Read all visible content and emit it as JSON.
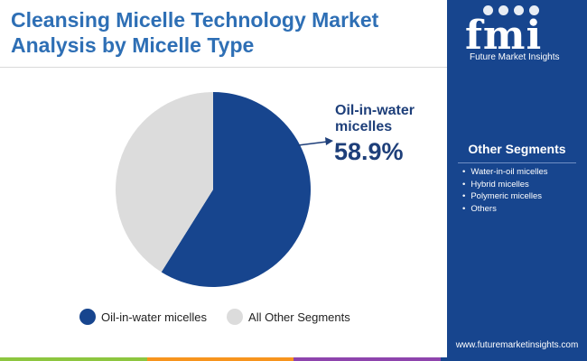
{
  "title": {
    "line1": "Cleansing Micelle Technology Market",
    "line2": "Analysis by Micelle Type"
  },
  "chart_data": {
    "type": "pie",
    "slices": [
      {
        "label": "Oil-in-water micelles",
        "value": 58.9,
        "color": "#17458e"
      },
      {
        "label": "All Other Segments",
        "value": 41.1,
        "color": "#dcdcdc"
      }
    ],
    "annotation": {
      "label_line1": "Oil-in-water",
      "label_line2": "micelles",
      "value": "58.9%"
    },
    "legend": [
      "Oil-in-water micelles",
      "All Other Segments"
    ]
  },
  "side_panel": {
    "logo_letters": "fmi",
    "logo_subtitle": "Future Market Insights",
    "heading": "Other Segments",
    "items": [
      "Water-in-oil micelles",
      "Hybrid micelles",
      "Polymeric micelles",
      "Others"
    ],
    "website": "www.futuremarketinsights.com",
    "bullet": "•"
  },
  "colors": {
    "accent": "#17458e",
    "title": "#2e6fb5",
    "other": "#dcdcdc",
    "bottom_bar": [
      "#8dc63f",
      "#f7941d",
      "#8e44ad",
      "#17458e"
    ]
  }
}
